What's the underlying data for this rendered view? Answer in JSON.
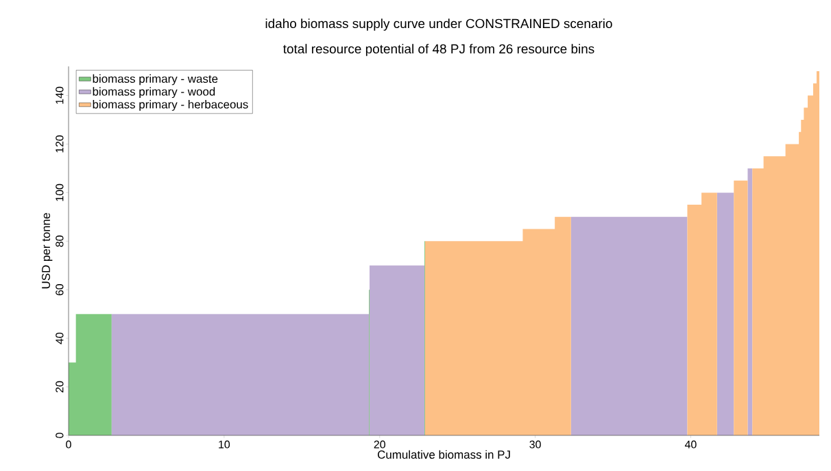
{
  "chart_data": {
    "type": "area",
    "title": "idaho biomass supply curve under CONSTRAINED scenario",
    "subtitle": "total resource potential of 48 PJ from 26 resource bins",
    "xlabel": "Cumulative biomass in PJ",
    "ylabel": "USD per tonne",
    "xlim": [
      0,
      48.27
    ],
    "ylim": [
      0,
      152
    ],
    "xticks": [
      0,
      10,
      20,
      30,
      40
    ],
    "yticks": [
      0,
      20,
      40,
      60,
      80,
      100,
      120,
      140
    ],
    "legend": "top left",
    "grid": false,
    "series": [
      {
        "name": "biomass primary - waste",
        "color": "#7fc97f",
        "x": [
          0,
          0,
          0.47,
          0.47,
          0.47,
          0.47,
          2.77,
          2.77,
          19.31,
          19.31,
          19.35,
          19.35,
          22.88,
          22.88,
          22.92,
          22.92
        ],
        "values": [
          0,
          30,
          30,
          0,
          0,
          50,
          50,
          0,
          0,
          60,
          60,
          0,
          0,
          80,
          80,
          0
        ]
      },
      {
        "name": "biomass primary - wood",
        "color": "#beaed4",
        "x": [
          2.77,
          2.77,
          19.31,
          19.31,
          19.35,
          19.35,
          22.88,
          22.88,
          32.3,
          32.3,
          39.78,
          39.78,
          41.69,
          41.69,
          42.77,
          42.77,
          43.66,
          43.66,
          43.96,
          43.96
        ],
        "values": [
          0,
          50,
          50,
          0,
          0,
          70,
          70,
          0,
          0,
          90,
          90,
          0,
          0,
          100,
          100,
          0,
          0,
          110,
          110,
          0
        ]
      },
      {
        "name": "biomass primary - herbaceous",
        "color": "#fdc086",
        "x": [
          22.92,
          22.92,
          29.2,
          29.2,
          29.2,
          29.2,
          31.26,
          31.26,
          31.26,
          31.26,
          32.3,
          32.3,
          39.78,
          39.78,
          40.69,
          40.69,
          40.69,
          40.69,
          41.69,
          41.69,
          42.77,
          42.77,
          43.66,
          43.66,
          43.96,
          43.96,
          44.68,
          44.68,
          44.68,
          44.68,
          46.09,
          46.09,
          46.09,
          46.09,
          46.95,
          46.95,
          46.95,
          46.95,
          47.09,
          47.09,
          47.09,
          47.09,
          47.27,
          47.27,
          47.27,
          47.27,
          47.52,
          47.52,
          47.52,
          47.52,
          47.87,
          47.87,
          47.87,
          47.87,
          48.09,
          48.09,
          48.09,
          48.09,
          48.27,
          48.27
        ],
        "values": [
          0,
          80,
          80,
          0,
          0,
          85,
          85,
          0,
          0,
          90,
          90,
          0,
          0,
          95,
          95,
          0,
          0,
          100,
          100,
          0,
          0,
          105,
          105,
          0,
          0,
          110,
          110,
          0,
          0,
          115,
          115,
          0,
          0,
          120,
          120,
          0,
          0,
          125,
          125,
          0,
          0,
          130,
          130,
          0,
          0,
          135,
          135,
          0,
          0,
          140,
          140,
          0,
          0,
          145,
          145,
          0,
          0,
          150,
          150,
          0
        ]
      }
    ]
  }
}
